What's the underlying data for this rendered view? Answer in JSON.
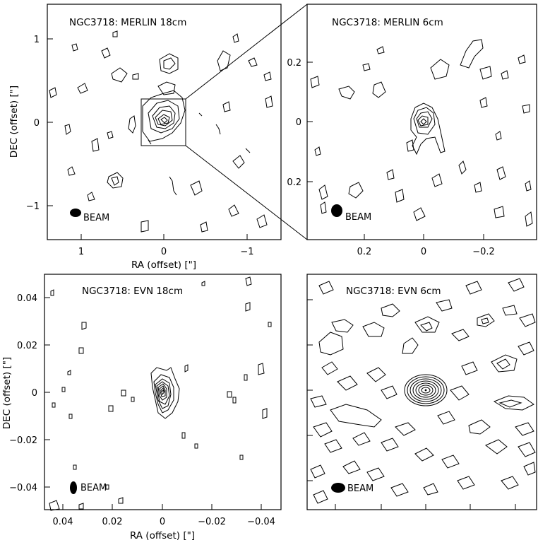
{
  "chart_data": [
    {
      "type": "contour",
      "title": "NGC3718: MERLIN 18cm",
      "xlabel": "RA (offset) [\"]",
      "ylabel": "DEC (offset) [\"]",
      "xlim": [
        1.4,
        -1.4
      ],
      "ylim": [
        -1.4,
        1.4
      ],
      "xticks": [
        1,
        0,
        -1
      ],
      "yticks": [
        1,
        0,
        -1
      ],
      "beam_label": "BEAM",
      "peak": {
        "x": 0.0,
        "y": 0.0
      },
      "zoom_box": {
        "x": [
          0.25,
          -0.25
        ],
        "y": [
          -0.27,
          0.27
        ]
      }
    },
    {
      "type": "contour",
      "title": "NGC3718: MERLIN 6cm",
      "xlim": [
        0.4,
        -0.4
      ],
      "ylim": [
        -0.4,
        0.4
      ],
      "xticks": [
        0.2,
        0,
        -0.2
      ],
      "yticks": [
        0.2,
        0,
        0.2
      ],
      "beam_label": "BEAM",
      "peak": {
        "x": 0.0,
        "y": 0.0
      }
    },
    {
      "type": "contour",
      "title": "NGC3718: EVN 18cm",
      "xlabel": "RA (offset) [\"]",
      "ylabel": "DEC (offset) [\"]",
      "xlim": [
        0.048,
        -0.048
      ],
      "ylim": [
        -0.05,
        0.048
      ],
      "xticks": [
        0.04,
        0.02,
        0,
        -0.02,
        -0.04
      ],
      "yticks": [
        0.04,
        0.02,
        0,
        -0.02,
        -0.04
      ],
      "beam_label": "BEAM",
      "peak": {
        "x": 0.0,
        "y": 0.0
      }
    },
    {
      "type": "contour",
      "title": "NGC3718: EVN 6cm",
      "beam_label": "BEAM",
      "peak": {
        "x": 0.0,
        "y": 0.0
      }
    }
  ]
}
